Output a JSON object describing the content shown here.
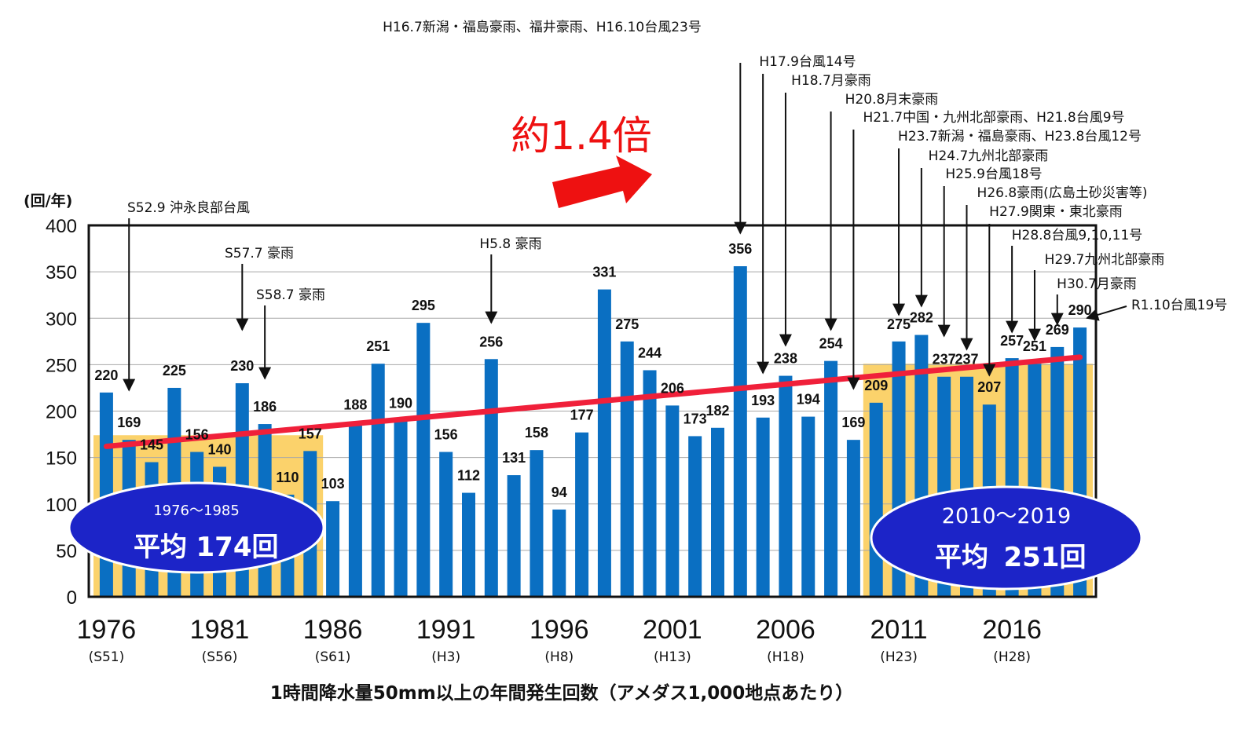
{
  "chart_data": {
    "type": "bar",
    "title": "1時間降水量50mm以上の年間発生回数（アメダス1,000地点あたり）",
    "ylabel": "(回/年)",
    "ylim": [
      0,
      400
    ],
    "yticks": [
      0,
      50,
      100,
      150,
      200,
      250,
      300,
      350,
      400
    ],
    "grid": true,
    "categories": [
      1976,
      1977,
      1978,
      1979,
      1980,
      1981,
      1982,
      1983,
      1984,
      1985,
      1986,
      1987,
      1988,
      1989,
      1990,
      1991,
      1992,
      1993,
      1994,
      1995,
      1996,
      1997,
      1998,
      1999,
      2000,
      2001,
      2002,
      2003,
      2004,
      2005,
      2006,
      2007,
      2008,
      2009,
      2010,
      2011,
      2012,
      2013,
      2014,
      2015,
      2016,
      2017,
      2018,
      2019
    ],
    "values": [
      220,
      169,
      145,
      225,
      156,
      140,
      230,
      186,
      110,
      157,
      103,
      188,
      251,
      190,
      295,
      156,
      112,
      256,
      131,
      158,
      94,
      177,
      331,
      275,
      244,
      206,
      173,
      182,
      356,
      193,
      238,
      194,
      254,
      169,
      209,
      275,
      282,
      237,
      237,
      207,
      257,
      251,
      269,
      290
    ],
    "bar_color": "#0a6fc2",
    "xtick_labels": [
      {
        "year": 1976,
        "label": "1976",
        "era": "(S51)"
      },
      {
        "year": 1981,
        "label": "1981",
        "era": "(S56)"
      },
      {
        "year": 1986,
        "label": "1986",
        "era": "(S61)"
      },
      {
        "year": 1991,
        "label": "1991",
        "era": "(H3)"
      },
      {
        "year": 1996,
        "label": "1996",
        "era": "(H8)"
      },
      {
        "year": 2001,
        "label": "2001",
        "era": "(H13)"
      },
      {
        "year": 2006,
        "label": "2006",
        "era": "(H18)"
      },
      {
        "year": 2011,
        "label": "2011",
        "era": "(H23)"
      },
      {
        "year": 2016,
        "label": "2016",
        "era": "(H28)"
      }
    ],
    "trend": {
      "start": {
        "year": 1976,
        "value": 162
      },
      "end": {
        "year": 2019,
        "value": 258
      },
      "color": "#f0203a"
    },
    "averages": [
      {
        "years": "1976〜1985",
        "label": "平均",
        "value": "174回",
        "from": 1976,
        "to": 1985,
        "mean": 174
      },
      {
        "years": "2010〜2019",
        "label": "平均",
        "value": "251回",
        "from": 2010,
        "to": 2019,
        "mean": 251
      }
    ],
    "average_band_color": "#fbd26b",
    "average_ellipse_color": "#1c24c8",
    "ratio_text": "約1.4倍",
    "ratio_color": "#ee1111",
    "events": [
      {
        "label": "S52.9 沖永良部台風",
        "year": 1977
      },
      {
        "label": "S57.7 豪雨",
        "year": 1982
      },
      {
        "label": "S58.7 豪雨",
        "year": 1983
      },
      {
        "label": "H5.8 豪雨",
        "year": 1993
      },
      {
        "label": "H16.7新潟・福島豪雨、福井豪雨、H16.10台風23号",
        "year": 2004
      },
      {
        "label": "H17.9台風14号",
        "year": 2005
      },
      {
        "label": "H18.7月豪雨",
        "year": 2006
      },
      {
        "label": "H20.8月末豪雨",
        "year": 2008
      },
      {
        "label": "H21.7中国・九州北部豪雨、H21.8台風9号",
        "year": 2009
      },
      {
        "label": "H23.7新潟・福島豪雨、H23.8台風12号",
        "year": 2011
      },
      {
        "label": "H24.7九州北部豪雨",
        "year": 2012
      },
      {
        "label": "H25.9台風18号",
        "year": 2013
      },
      {
        "label": "H26.8豪雨(広島土砂災害等)",
        "year": 2014
      },
      {
        "label": "H27.9関東・東北豪雨",
        "year": 2015
      },
      {
        "label": "H28.8台風9,10,11号",
        "year": 2016
      },
      {
        "label": "H29.7九州北部豪雨",
        "year": 2017
      },
      {
        "label": "H30.7月豪雨",
        "year": 2018
      },
      {
        "label": "R1.10台風19号",
        "year": 2019
      }
    ]
  }
}
